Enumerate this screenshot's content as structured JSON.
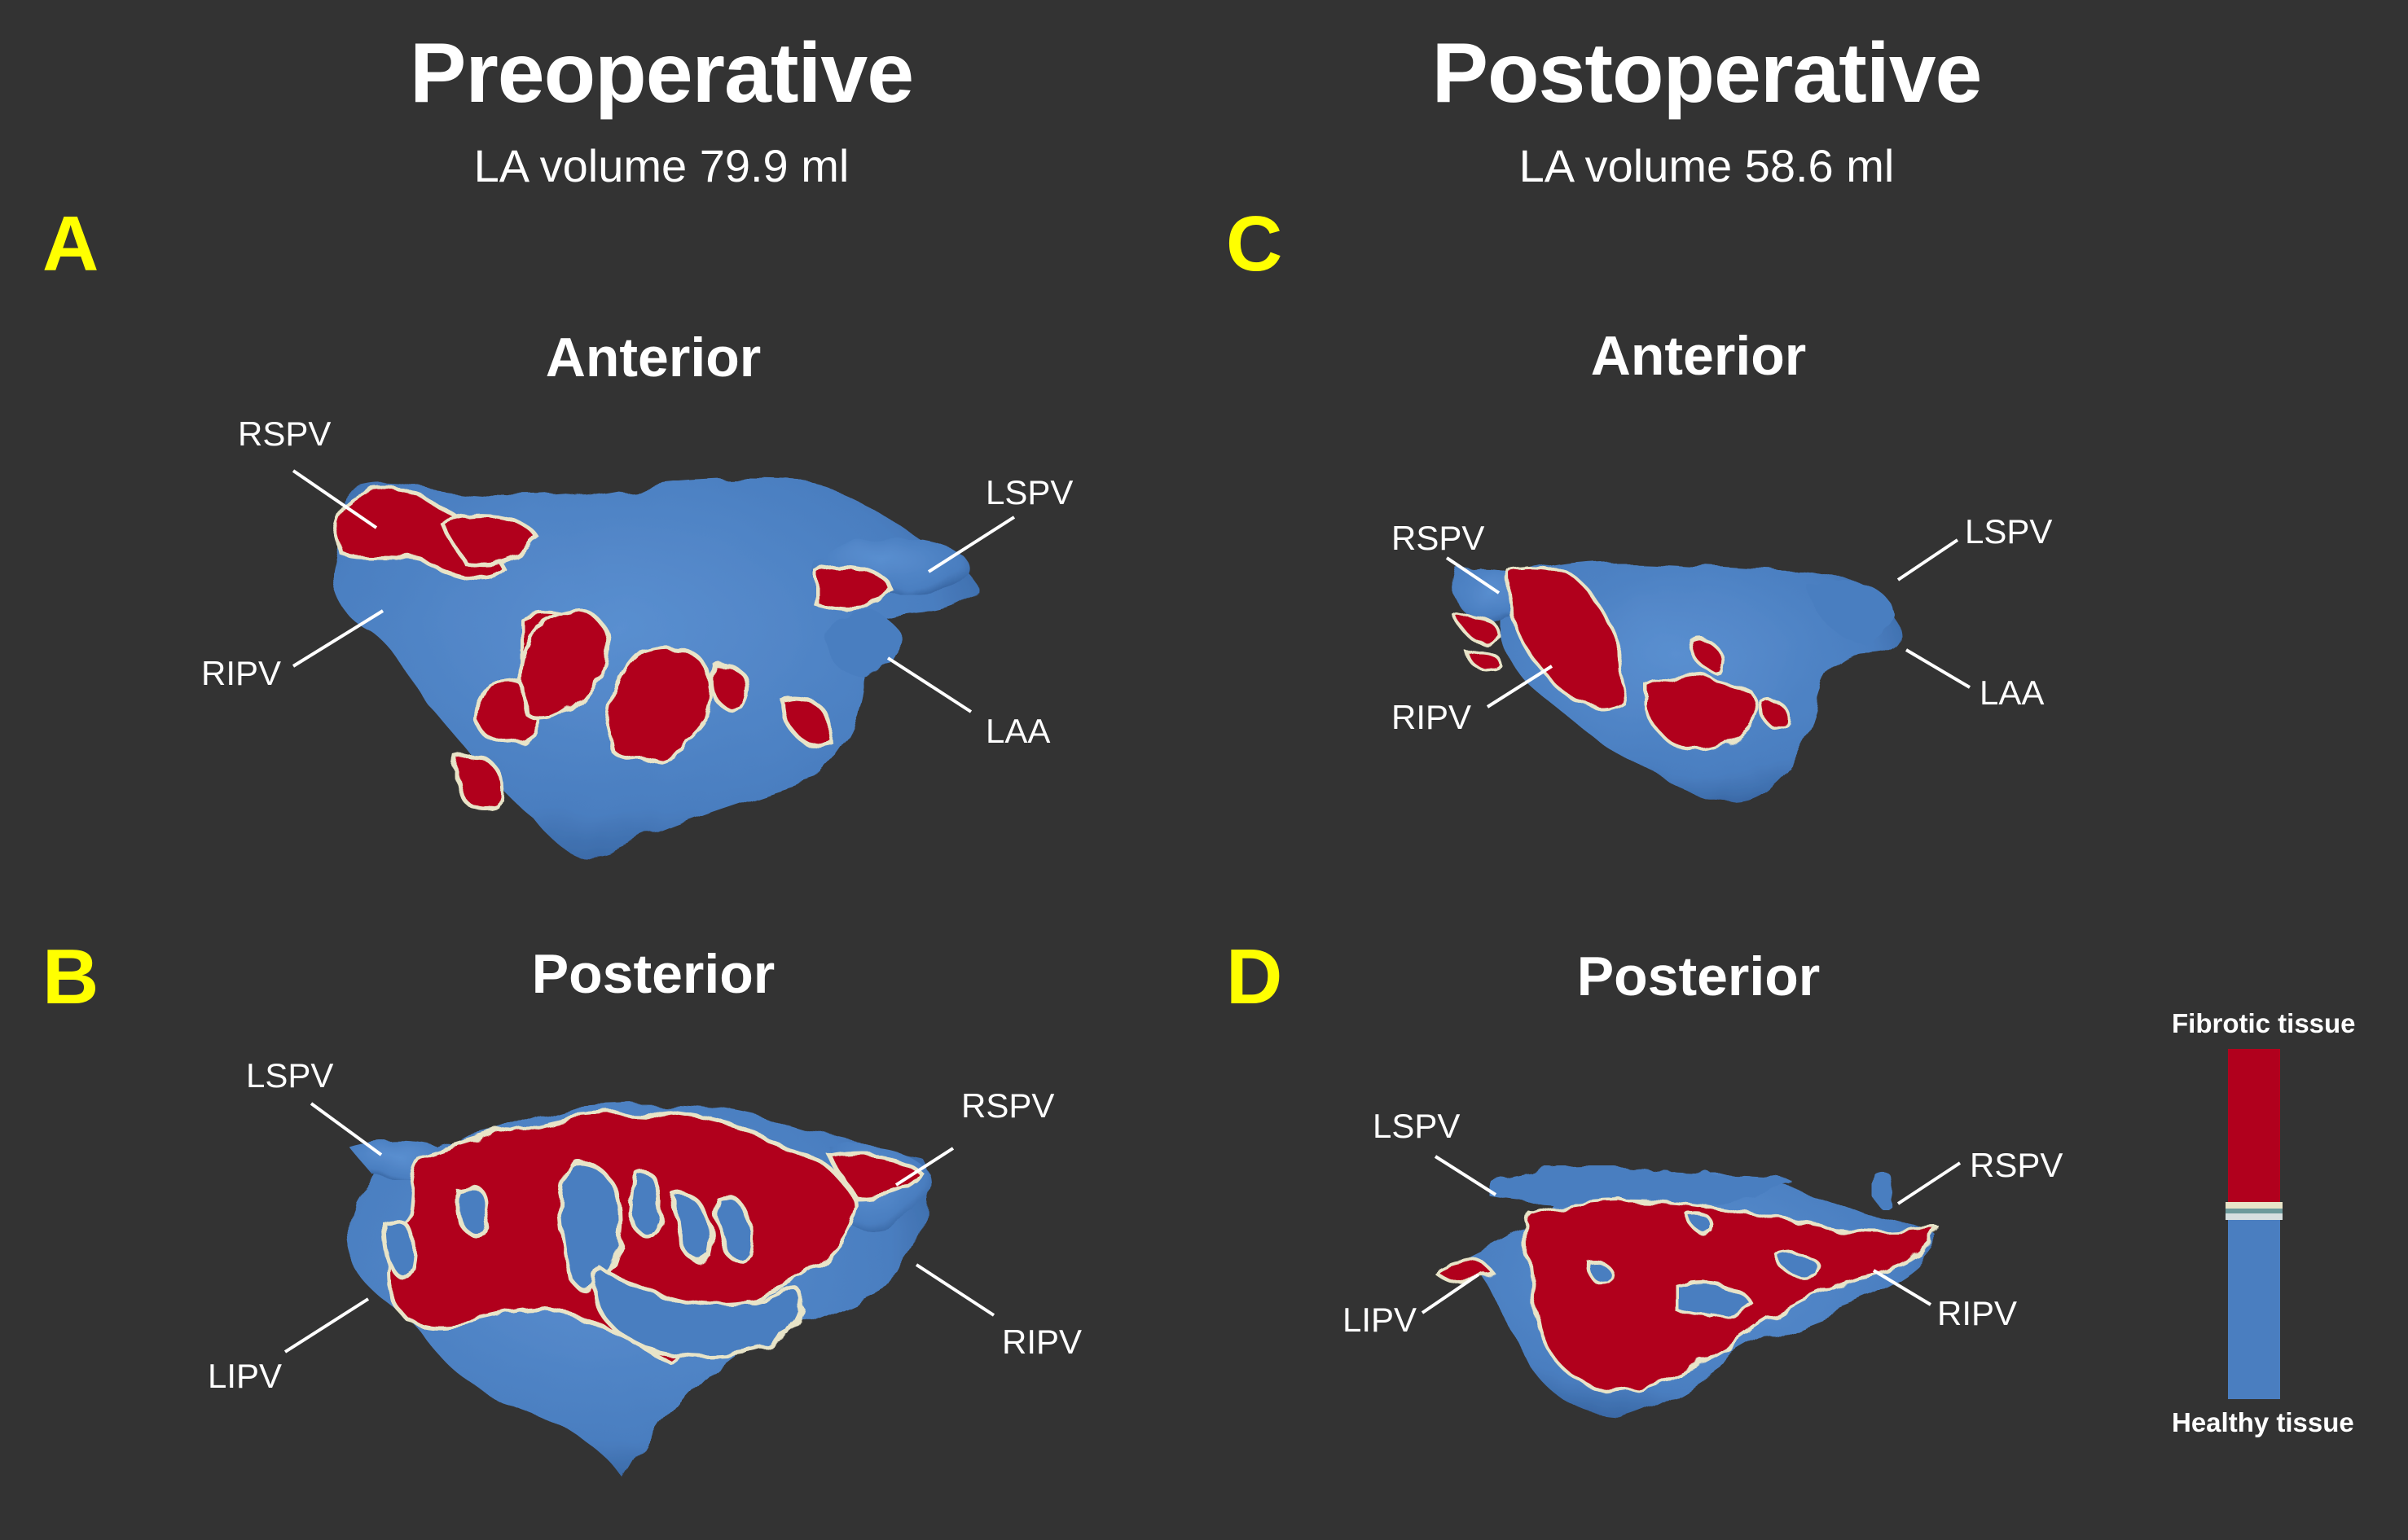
{
  "columns": {
    "pre": {
      "title": "Preoperative",
      "subtitle": "LA volume 79.9 ml"
    },
    "post": {
      "title": "Postoperative",
      "subtitle": "LA volume 58.6 ml"
    }
  },
  "panels": {
    "A": {
      "letter": "A",
      "view": "Anterior",
      "labels": [
        "RSPV",
        "LSPV",
        "RIPV",
        "LAA"
      ]
    },
    "B": {
      "letter": "B",
      "view": "Posterior",
      "labels": [
        "LSPV",
        "RSPV",
        "LIPV",
        "RIPV"
      ]
    },
    "C": {
      "letter": "C",
      "view": "Anterior",
      "labels": [
        "RSPV",
        "LSPV",
        "RIPV",
        "LAA"
      ]
    },
    "D": {
      "letter": "D",
      "view": "Posterior",
      "labels": [
        "LSPV",
        "RSPV",
        "LIPV",
        "RIPV"
      ]
    }
  },
  "legend": {
    "top_label": "Fibrotic tissue",
    "bottom_label": "Healthy tissue",
    "colors": {
      "fibrotic": "#b1001d",
      "healthy": "#4a7ec0",
      "transition": "#e8e4c8"
    }
  },
  "colors": {
    "background": "#333333",
    "panel_letter": "#ffff00",
    "text": "#ffffff"
  }
}
